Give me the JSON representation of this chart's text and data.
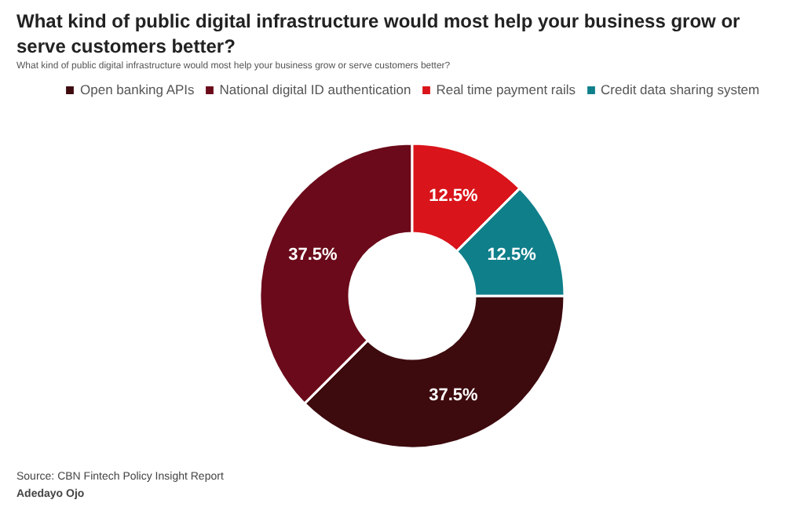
{
  "chart_data": {
    "type": "donut",
    "title": "What kind of public digital infrastructure would most help your business grow or serve customers better?",
    "subtitle": "What kind of public digital infrastructure would most help your business grow or serve customers better?",
    "categories": [
      "Open banking APIs",
      "National digital ID authentication",
      "Real time payment rails",
      "Credit data sharing system"
    ],
    "values": [
      37.5,
      37.5,
      12.5,
      12.5
    ],
    "colors": [
      "#3d0a0e",
      "#6b0a1a",
      "#d9141a",
      "#0f7f8a"
    ],
    "value_labels": [
      "37.5%",
      "37.5%",
      "12.5%",
      "12.5%"
    ],
    "legend": "top",
    "annotations": [
      "Source: CBN Fintech Policy Insight Report",
      "Adedayo Ojo"
    ]
  }
}
